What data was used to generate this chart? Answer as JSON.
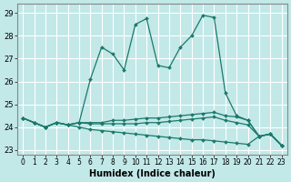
{
  "xlabel": "Humidex (Indice chaleur)",
  "bg_color": "#c2e8e8",
  "grid_color": "#ffffff",
  "line_color": "#1a7a6a",
  "xlim": [
    -0.5,
    23.5
  ],
  "ylim": [
    22.8,
    29.4
  ],
  "yticks": [
    23,
    24,
    25,
    26,
    27,
    28,
    29
  ],
  "xticks": [
    0,
    1,
    2,
    3,
    4,
    5,
    6,
    7,
    8,
    9,
    10,
    11,
    12,
    13,
    14,
    15,
    16,
    17,
    18,
    19,
    20,
    21,
    22,
    23
  ],
  "series": [
    [
      24.4,
      24.2,
      24.0,
      24.2,
      24.1,
      24.2,
      26.1,
      27.5,
      27.2,
      26.5,
      28.5,
      28.75,
      26.7,
      26.6,
      27.5,
      28.0,
      28.9,
      28.8,
      25.5,
      24.5,
      24.3,
      23.6,
      23.7,
      23.2
    ],
    [
      24.4,
      24.2,
      24.0,
      24.2,
      24.1,
      24.2,
      24.2,
      24.2,
      24.3,
      24.3,
      24.35,
      24.4,
      24.4,
      24.45,
      24.5,
      24.55,
      24.6,
      24.65,
      24.5,
      24.45,
      24.3,
      23.6,
      23.7,
      23.2
    ],
    [
      24.4,
      24.2,
      24.0,
      24.2,
      24.1,
      24.2,
      24.15,
      24.15,
      24.15,
      24.15,
      24.15,
      24.2,
      24.2,
      24.25,
      24.3,
      24.35,
      24.4,
      24.45,
      24.3,
      24.2,
      24.1,
      23.6,
      23.7,
      23.2
    ],
    [
      24.4,
      24.2,
      24.0,
      24.2,
      24.1,
      24.0,
      23.9,
      23.85,
      23.8,
      23.75,
      23.7,
      23.65,
      23.6,
      23.55,
      23.5,
      23.45,
      23.45,
      23.4,
      23.35,
      23.3,
      23.25,
      23.6,
      23.7,
      23.2
    ]
  ]
}
